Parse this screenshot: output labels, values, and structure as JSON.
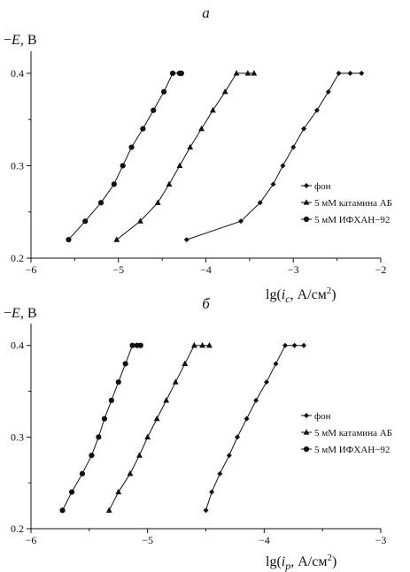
{
  "chart_data": [
    {
      "type": "line",
      "panel_label": "а",
      "ylabel_prefix": "−",
      "ylabel_var": "E",
      "ylabel_unit": ", В",
      "xlabel_pre": "lg(",
      "xlabel_var": "i",
      "xlabel_sub": "c",
      "xlabel_post": ", А/см",
      "xlabel_sup": "2",
      "xlabel_close": ")",
      "xlim": [
        -6,
        -2
      ],
      "ylim": [
        0.2,
        0.42
      ],
      "xticks": [
        -6,
        -5,
        -4,
        -3,
        -2
      ],
      "xtick_labels": [
        "−6",
        "−5",
        "−4",
        "−3",
        "−2"
      ],
      "yticks": [
        0.2,
        0.3,
        0.4
      ],
      "ytick_labels": [
        "0.2",
        "0.3",
        "0.4"
      ],
      "legend_position": "right",
      "series": [
        {
          "name": "фон",
          "marker": "diamond",
          "x": [
            -4.22,
            -3.6,
            -3.38,
            -3.23,
            -3.12,
            -3.0,
            -2.88,
            -2.73,
            -2.6,
            -2.48,
            -2.35,
            -2.22
          ],
          "y": [
            0.22,
            0.24,
            0.26,
            0.28,
            0.3,
            0.32,
            0.34,
            0.36,
            0.38,
            0.4,
            0.4,
            0.4
          ]
        },
        {
          "name": "5 мМ катамина АБ",
          "marker": "triangle",
          "x": [
            -5.02,
            -4.75,
            -4.55,
            -4.42,
            -4.3,
            -4.18,
            -4.05,
            -3.92,
            -3.78,
            -3.65,
            -3.52,
            -3.45
          ],
          "y": [
            0.22,
            0.24,
            0.26,
            0.28,
            0.3,
            0.32,
            0.34,
            0.36,
            0.38,
            0.4,
            0.4,
            0.4
          ]
        },
        {
          "name": "5 мМ ИФХАН−92",
          "marker": "circle",
          "x": [
            -5.57,
            -5.38,
            -5.2,
            -5.05,
            -4.95,
            -4.85,
            -4.72,
            -4.6,
            -4.48,
            -4.38,
            -4.3,
            -4.28
          ],
          "y": [
            0.22,
            0.24,
            0.26,
            0.28,
            0.3,
            0.32,
            0.34,
            0.36,
            0.38,
            0.4,
            0.4,
            0.4
          ]
        }
      ]
    },
    {
      "type": "line",
      "panel_label": "б",
      "ylabel_prefix": "−",
      "ylabel_var": "E",
      "ylabel_unit": ", В",
      "xlabel_pre": "lg(",
      "xlabel_var": "i",
      "xlabel_sub": "p",
      "xlabel_post": ", А/см",
      "xlabel_sup": "2",
      "xlabel_close": ")",
      "xlim": [
        -6,
        -3
      ],
      "ylim": [
        0.2,
        0.42
      ],
      "xticks": [
        -6,
        -5,
        -4,
        -3
      ],
      "xtick_labels": [
        "−6",
        "−5",
        "−4",
        "−3"
      ],
      "yticks": [
        0.2,
        0.3,
        0.4
      ],
      "ytick_labels": [
        "0.2",
        "0.3",
        "0.4"
      ],
      "legend_position": "right",
      "series": [
        {
          "name": "фон",
          "marker": "diamond",
          "x": [
            -4.5,
            -4.45,
            -4.38,
            -4.3,
            -4.23,
            -4.15,
            -4.07,
            -3.98,
            -3.9,
            -3.82,
            -3.74,
            -3.66
          ],
          "y": [
            0.22,
            0.24,
            0.26,
            0.28,
            0.3,
            0.32,
            0.34,
            0.36,
            0.38,
            0.4,
            0.4,
            0.4
          ]
        },
        {
          "name": "5 мМ катамина АБ",
          "marker": "triangle",
          "x": [
            -5.33,
            -5.25,
            -5.15,
            -5.07,
            -5.0,
            -4.92,
            -4.84,
            -4.76,
            -4.68,
            -4.6,
            -4.53,
            -4.47
          ],
          "y": [
            0.22,
            0.24,
            0.26,
            0.28,
            0.3,
            0.32,
            0.34,
            0.36,
            0.38,
            0.4,
            0.4,
            0.4
          ]
        },
        {
          "name": "5 мМ ИФХАН−92",
          "marker": "circle",
          "x": [
            -5.73,
            -5.65,
            -5.56,
            -5.48,
            -5.42,
            -5.37,
            -5.31,
            -5.25,
            -5.19,
            -5.13,
            -5.09,
            -5.06
          ],
          "y": [
            0.22,
            0.24,
            0.26,
            0.28,
            0.3,
            0.32,
            0.34,
            0.36,
            0.38,
            0.4,
            0.4,
            0.4
          ]
        }
      ]
    }
  ]
}
